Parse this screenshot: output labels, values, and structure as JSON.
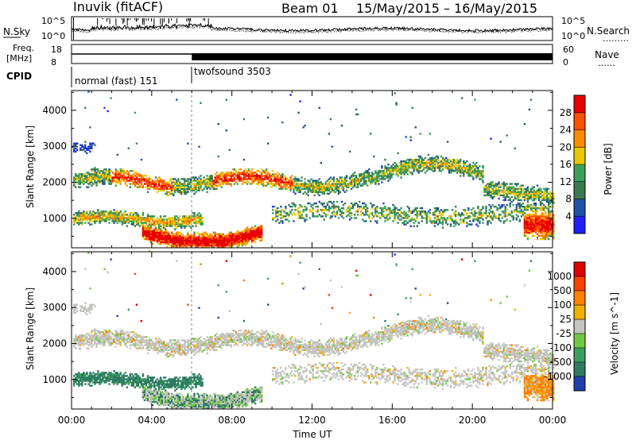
{
  "header": {
    "station": "Inuvik (fitACF)",
    "beam": "Beam 01",
    "dates": "15/May/2015 – 16/May/2015"
  },
  "noise_panel": {
    "left_label": "N.Sky",
    "right_label": "N.Search",
    "right_line": "………",
    "left_ticks": [
      "10^5",
      "10^0"
    ],
    "right_ticks": [
      "10^5",
      "10^0"
    ]
  },
  "freq_panel": {
    "left_label_1": "Freq.",
    "left_label_2": "[MHz]",
    "right_label": "Nave",
    "right_line": "……",
    "left_ticks": [
      "18",
      "8"
    ],
    "right_ticks": [
      "60",
      "0"
    ]
  },
  "cpid_panel": {
    "label": "CPID",
    "modes": [
      {
        "name": "normal (fast) 151",
        "start_hour": 0
      },
      {
        "name": "twofsound 3503",
        "start_hour": 6
      }
    ]
  },
  "chart_data": [
    {
      "type": "heatmap",
      "name": "power",
      "xlabel": "",
      "ylabel": "Slant Range [km]",
      "xlim_hours": [
        0,
        24
      ],
      "ylim": [
        180,
        4550
      ],
      "yticks": [
        1000,
        2000,
        3000,
        4000
      ],
      "colorbar": {
        "label": "Power [dB]",
        "ticks": [
          "4",
          "8",
          "12",
          "16",
          "20",
          "24",
          "28"
        ],
        "colors": [
          "#2020ff",
          "#2050a8",
          "#3c7a50",
          "#3aa05a",
          "#e8c800",
          "#ff8c00",
          "#ff5000",
          "#e80000"
        ]
      }
    },
    {
      "type": "heatmap",
      "name": "velocity",
      "xlabel": "Time UT",
      "ylabel": "Slant Range [km]",
      "xlim_hours": [
        0,
        24
      ],
      "ylim": [
        180,
        4550
      ],
      "yticks": [
        1000,
        2000,
        3000,
        4000
      ],
      "colorbar": {
        "label": "Velocity [m s^-1]",
        "ticks": [
          "1000",
          "500",
          "100",
          "25",
          "-25",
          "-100",
          "-500",
          "-1000"
        ],
        "colors": [
          "#2040b0",
          "#2f7a62",
          "#3aa060",
          "#70c840",
          "#c4c4c0",
          "#f0b000",
          "#ff8000",
          "#ff4000",
          "#e00000"
        ]
      }
    }
  ],
  "time_axis": {
    "label": "Time UT",
    "ticks": [
      "00:00",
      "04:00",
      "08:00",
      "12:00",
      "16:00",
      "20:00",
      "00:00"
    ]
  }
}
